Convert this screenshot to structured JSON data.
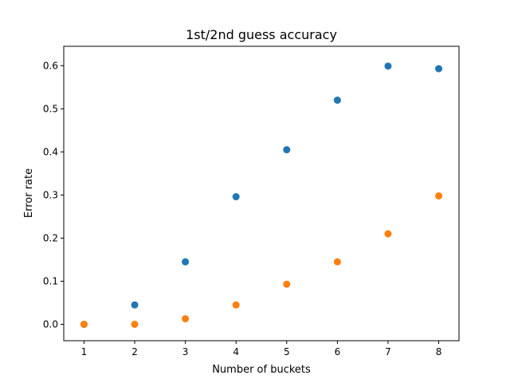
{
  "chart_data": {
    "type": "scatter",
    "title": "1st/2nd guess accuracy",
    "xlabel": "Number of buckets",
    "ylabel": "Error rate",
    "xlim": [
      0.6,
      8.4
    ],
    "ylim": [
      -0.038,
      0.645
    ],
    "xticks": [
      "1",
      "2",
      "3",
      "4",
      "5",
      "6",
      "7",
      "8"
    ],
    "yticks": [
      "0.0",
      "0.1",
      "0.2",
      "0.3",
      "0.4",
      "0.5",
      "0.6"
    ],
    "grid": false,
    "series": [
      {
        "color": "#1f77b4",
        "x": [
          1,
          2,
          3,
          4,
          5,
          6,
          7,
          8
        ],
        "y": [
          0.0,
          0.045,
          0.145,
          0.296,
          0.405,
          0.52,
          0.599,
          0.593
        ]
      },
      {
        "color": "#ff7f0e",
        "x": [
          1,
          2,
          3,
          4,
          5,
          6,
          7,
          8
        ],
        "y": [
          0.0,
          0.0,
          0.013,
          0.045,
          0.093,
          0.145,
          0.21,
          0.298
        ]
      }
    ]
  }
}
